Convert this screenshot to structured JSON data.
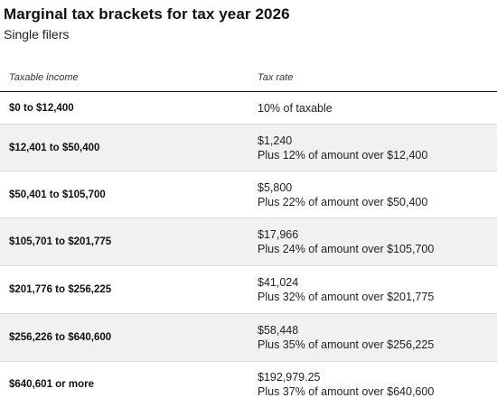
{
  "title": "Marginal tax brackets for tax year 2026",
  "subtitle": "Single filers",
  "table": {
    "headers": {
      "income": "Taxable income",
      "rate": "Tax rate"
    },
    "rows": [
      {
        "income": "$0 to $12,400",
        "rate_line1": "10% of taxable",
        "rate_line2": ""
      },
      {
        "income": "$12,401 to $50,400",
        "rate_line1": "$1,240",
        "rate_line2": "Plus 12% of amount over $12,400"
      },
      {
        "income": "$50,401 to $105,700",
        "rate_line1": "$5,800",
        "rate_line2": "Plus 22% of amount over $50,400"
      },
      {
        "income": "$105,701 to $201,775",
        "rate_line1": "$17,966",
        "rate_line2": "Plus 24% of amount over $105,700"
      },
      {
        "income": "$201,776 to $256,225",
        "rate_line1": "$41,024",
        "rate_line2": "Plus 32% of amount over $201,775"
      },
      {
        "income": "$256,226 to $640,600",
        "rate_line1": "$58,448",
        "rate_line2": "Plus 35% of amount over $256,225"
      },
      {
        "income": "$640,601 or more",
        "rate_line1": "$192,979.25",
        "rate_line2": "Plus 37% of amount over $640,600"
      }
    ]
  }
}
